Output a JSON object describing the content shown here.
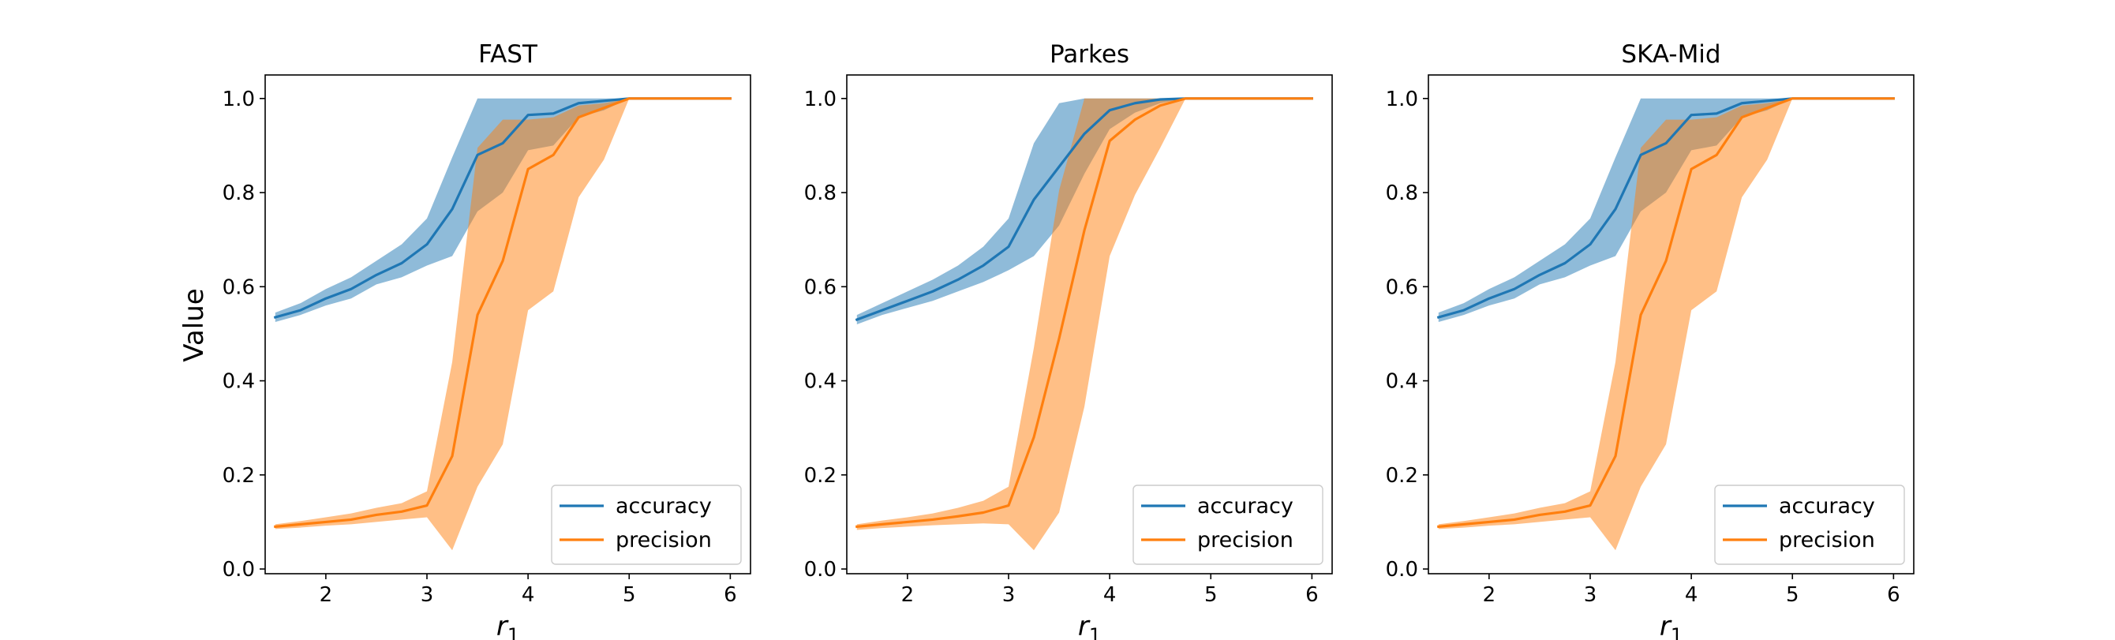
{
  "figure": {
    "ylabel": "Value",
    "legend_placement": "lower right",
    "colors": {
      "accuracy": "#1f77b4",
      "precision": "#ff7f0e"
    }
  },
  "chart_data": [
    {
      "type": "line",
      "title": "FAST",
      "xlabel": "r",
      "xlabel_subscript": "1",
      "ylabel": "Value",
      "xlim": [
        1.4,
        6.2
      ],
      "ylim": [
        -0.01,
        1.05
      ],
      "xticks": [
        2,
        3,
        4,
        5,
        6
      ],
      "yticks": [
        0.0,
        0.2,
        0.4,
        0.6,
        0.8,
        1.0
      ],
      "ytick_labels": [
        "0.0",
        "0.2",
        "0.4",
        "0.6",
        "0.8",
        "1.0"
      ],
      "legend": [
        "accuracy",
        "precision"
      ],
      "x": [
        1.5,
        1.75,
        2.0,
        2.25,
        2.5,
        2.75,
        3.0,
        3.25,
        3.5,
        3.75,
        4.0,
        4.25,
        4.5,
        4.75,
        5.0,
        5.25,
        5.5,
        5.75,
        6.0
      ],
      "series": [
        {
          "name": "accuracy",
          "color": "#1f77b4",
          "values": [
            0.535,
            0.55,
            0.575,
            0.595,
            0.625,
            0.65,
            0.69,
            0.765,
            0.88,
            0.905,
            0.965,
            0.968,
            0.99,
            0.995,
            1.0,
            1.0,
            1.0,
            1.0,
            1.0
          ],
          "lower": [
            0.525,
            0.54,
            0.56,
            0.575,
            0.605,
            0.62,
            0.645,
            0.665,
            0.76,
            0.8,
            0.89,
            0.9,
            0.96,
            0.975,
            1.0,
            1.0,
            1.0,
            1.0,
            1.0
          ],
          "upper": [
            0.545,
            0.565,
            0.595,
            0.62,
            0.655,
            0.69,
            0.745,
            0.875,
            1.0,
            1.0,
            1.0,
            1.0,
            1.0,
            1.0,
            1.0,
            1.0,
            1.0,
            1.0,
            1.0
          ]
        },
        {
          "name": "precision",
          "color": "#ff7f0e",
          "values": [
            0.09,
            0.095,
            0.1,
            0.105,
            0.115,
            0.122,
            0.135,
            0.24,
            0.54,
            0.655,
            0.85,
            0.88,
            0.96,
            0.98,
            1.0,
            1.0,
            1.0,
            1.0,
            1.0
          ],
          "lower": [
            0.085,
            0.088,
            0.092,
            0.095,
            0.1,
            0.105,
            0.11,
            0.04,
            0.175,
            0.265,
            0.55,
            0.59,
            0.79,
            0.87,
            1.0,
            1.0,
            1.0,
            1.0,
            1.0
          ],
          "upper": [
            0.095,
            0.102,
            0.11,
            0.118,
            0.13,
            0.14,
            0.165,
            0.44,
            0.895,
            0.955,
            0.955,
            0.96,
            0.985,
            0.99,
            1.0,
            1.0,
            1.0,
            1.0,
            1.0
          ]
        }
      ]
    },
    {
      "type": "line",
      "title": "Parkes",
      "xlabel": "r",
      "xlabel_subscript": "1",
      "ylabel": "",
      "xlim": [
        1.4,
        6.2
      ],
      "ylim": [
        -0.01,
        1.05
      ],
      "xticks": [
        2,
        3,
        4,
        5,
        6
      ],
      "yticks": [
        0.0,
        0.2,
        0.4,
        0.6,
        0.8,
        1.0
      ],
      "ytick_labels": [
        "0.0",
        "0.2",
        "0.4",
        "0.6",
        "0.8",
        "1.0"
      ],
      "legend": [
        "accuracy",
        "precision"
      ],
      "x": [
        1.5,
        1.75,
        2.0,
        2.25,
        2.5,
        2.75,
        3.0,
        3.25,
        3.5,
        3.75,
        4.0,
        4.25,
        4.5,
        4.75,
        5.0,
        5.25,
        5.5,
        5.75,
        6.0
      ],
      "series": [
        {
          "name": "accuracy",
          "color": "#1f77b4",
          "values": [
            0.53,
            0.55,
            0.57,
            0.59,
            0.615,
            0.645,
            0.685,
            0.785,
            0.855,
            0.925,
            0.975,
            0.99,
            0.998,
            1.0,
            1.0,
            1.0,
            1.0,
            1.0,
            1.0
          ],
          "lower": [
            0.52,
            0.54,
            0.555,
            0.57,
            0.59,
            0.61,
            0.635,
            0.665,
            0.73,
            0.84,
            0.935,
            0.97,
            0.99,
            1.0,
            1.0,
            1.0,
            1.0,
            1.0,
            1.0
          ],
          "upper": [
            0.54,
            0.565,
            0.59,
            0.615,
            0.645,
            0.685,
            0.745,
            0.905,
            0.99,
            1.0,
            1.0,
            1.0,
            1.0,
            1.0,
            1.0,
            1.0,
            1.0,
            1.0,
            1.0
          ]
        },
        {
          "name": "precision",
          "color": "#ff7f0e",
          "values": [
            0.09,
            0.095,
            0.1,
            0.105,
            0.112,
            0.12,
            0.135,
            0.28,
            0.49,
            0.72,
            0.91,
            0.955,
            0.985,
            1.0,
            1.0,
            1.0,
            1.0,
            1.0,
            1.0
          ],
          "lower": [
            0.083,
            0.087,
            0.09,
            0.093,
            0.095,
            0.097,
            0.095,
            0.04,
            0.12,
            0.345,
            0.665,
            0.795,
            0.895,
            1.0,
            1.0,
            1.0,
            1.0,
            1.0,
            1.0
          ],
          "upper": [
            0.095,
            0.103,
            0.11,
            0.118,
            0.13,
            0.145,
            0.175,
            0.47,
            0.805,
            1.0,
            1.0,
            1.0,
            1.0,
            1.0,
            1.0,
            1.0,
            1.0,
            1.0,
            1.0
          ]
        }
      ]
    },
    {
      "type": "line",
      "title": "SKA-Mid",
      "xlabel": "r",
      "xlabel_subscript": "1",
      "ylabel": "",
      "xlim": [
        1.4,
        6.2
      ],
      "ylim": [
        -0.01,
        1.05
      ],
      "xticks": [
        2,
        3,
        4,
        5,
        6
      ],
      "yticks": [
        0.0,
        0.2,
        0.4,
        0.6,
        0.8,
        1.0
      ],
      "ytick_labels": [
        "0.0",
        "0.2",
        "0.4",
        "0.6",
        "0.8",
        "1.0"
      ],
      "legend": [
        "accuracy",
        "precision"
      ],
      "x": [
        1.5,
        1.75,
        2.0,
        2.25,
        2.5,
        2.75,
        3.0,
        3.25,
        3.5,
        3.75,
        4.0,
        4.25,
        4.5,
        4.75,
        5.0,
        5.25,
        5.5,
        5.75,
        6.0
      ],
      "series": [
        {
          "name": "accuracy",
          "color": "#1f77b4",
          "values": [
            0.535,
            0.55,
            0.575,
            0.595,
            0.625,
            0.65,
            0.69,
            0.765,
            0.88,
            0.905,
            0.965,
            0.968,
            0.99,
            0.995,
            1.0,
            1.0,
            1.0,
            1.0,
            1.0
          ],
          "lower": [
            0.525,
            0.54,
            0.56,
            0.575,
            0.605,
            0.62,
            0.645,
            0.665,
            0.76,
            0.8,
            0.89,
            0.9,
            0.96,
            0.975,
            1.0,
            1.0,
            1.0,
            1.0,
            1.0
          ],
          "upper": [
            0.545,
            0.565,
            0.595,
            0.62,
            0.655,
            0.69,
            0.745,
            0.875,
            1.0,
            1.0,
            1.0,
            1.0,
            1.0,
            1.0,
            1.0,
            1.0,
            1.0,
            1.0,
            1.0
          ]
        },
        {
          "name": "precision",
          "color": "#ff7f0e",
          "values": [
            0.09,
            0.095,
            0.1,
            0.105,
            0.115,
            0.122,
            0.135,
            0.24,
            0.54,
            0.655,
            0.85,
            0.88,
            0.96,
            0.98,
            1.0,
            1.0,
            1.0,
            1.0,
            1.0
          ],
          "lower": [
            0.085,
            0.088,
            0.092,
            0.095,
            0.1,
            0.105,
            0.11,
            0.04,
            0.175,
            0.265,
            0.55,
            0.59,
            0.79,
            0.87,
            1.0,
            1.0,
            1.0,
            1.0,
            1.0
          ],
          "upper": [
            0.095,
            0.102,
            0.11,
            0.118,
            0.13,
            0.14,
            0.165,
            0.44,
            0.895,
            0.955,
            0.955,
            0.96,
            0.985,
            0.99,
            1.0,
            1.0,
            1.0,
            1.0,
            1.0
          ]
        }
      ]
    }
  ]
}
